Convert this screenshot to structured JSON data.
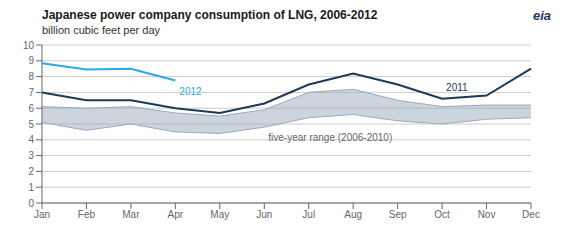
{
  "chart_data": {
    "type": "line",
    "title": "Japanese power company consumption of LNG, 2006-2012",
    "subtitle": "billion cubic feet per day",
    "annotations": [
      "eia"
    ],
    "categories": [
      "Jan",
      "Feb",
      "Mar",
      "Apr",
      "May",
      "Jun",
      "Jul",
      "Aug",
      "Sep",
      "Oct",
      "Nov",
      "Dec"
    ],
    "series": [
      {
        "name": "five-year range (2006-2010)",
        "type": "range",
        "color": "#9aaabb",
        "upper": [
          6.1,
          6.0,
          6.1,
          5.7,
          5.5,
          5.9,
          7.0,
          7.2,
          6.5,
          6.1,
          6.2,
          6.2
        ],
        "lower": [
          5.1,
          4.6,
          5.0,
          4.5,
          4.4,
          4.8,
          5.4,
          5.6,
          5.2,
          5.0,
          5.3,
          5.4
        ]
      },
      {
        "name": "2011",
        "color": "#1a3a5c",
        "values": [
          7.0,
          6.5,
          6.5,
          6.0,
          5.7,
          6.3,
          7.5,
          8.2,
          7.5,
          6.6,
          6.8,
          8.5
        ]
      },
      {
        "name": "2012",
        "color": "#29abe2",
        "values": [
          8.85,
          8.45,
          8.5,
          7.75,
          null,
          null,
          null,
          null,
          null,
          null,
          null,
          null
        ]
      }
    ],
    "ylim": [
      0,
      10
    ],
    "yticks": [
      0,
      1,
      2,
      3,
      4,
      5,
      6,
      7,
      8,
      9,
      10
    ],
    "grid": true
  }
}
